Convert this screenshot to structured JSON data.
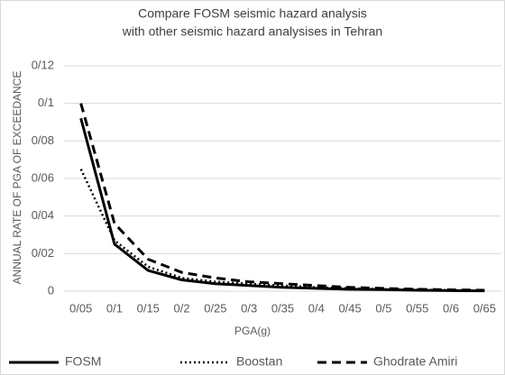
{
  "chart_data": {
    "type": "line",
    "title": [
      "Compare FOSM seismic hazard analysis",
      "with other  seismic hazard analysises  in Tehran"
    ],
    "x_label": "PGA(g)",
    "y_label": "ANNUAL RATE OF PGA OF EXCEEDANCE",
    "categories": [
      "0/05",
      "0/1",
      "0/15",
      "0/2",
      "0/25",
      "0/3",
      "0/35",
      "0/4",
      "0/45",
      "0/5",
      "0/55",
      "0/6",
      "0/65"
    ],
    "series": [
      {
        "name": "FOSM",
        "color": "#000000",
        "line_style": "solid",
        "values": [
          0.092,
          0.025,
          0.011,
          0.006,
          0.004,
          0.003,
          0.002,
          0.0015,
          0.001,
          0.0008,
          0.0005,
          0.0003,
          0.0002
        ]
      },
      {
        "name": "Boostan",
        "color": "#000000",
        "line_style": "dotted",
        "values": [
          0.065,
          0.027,
          0.013,
          0.007,
          0.005,
          0.004,
          0.003,
          0.002,
          0.0015,
          0.001,
          0.0008,
          0.0005,
          0.0003
        ]
      },
      {
        "name": "Ghodrate Amiri",
        "color": "#000000",
        "line_style": "dashed",
        "values": [
          0.1,
          0.036,
          0.017,
          0.01,
          0.007,
          0.005,
          0.004,
          0.003,
          0.002,
          0.0015,
          0.001,
          0.0007,
          0.0005
        ]
      }
    ],
    "ylim": [
      0,
      0.12
    ],
    "yticks": [
      0,
      {
        "value": 0.02,
        "label": "0/02"
      },
      {
        "value": 0.04,
        "label": "0/04"
      },
      {
        "value": 0.06,
        "label": "0/06"
      },
      {
        "value": 0.08,
        "label": "0/08"
      },
      {
        "value": 0.1,
        "label": "0/1"
      },
      {
        "value": 0.12,
        "label": "0/12"
      }
    ],
    "grid": true,
    "legend": "bottom"
  }
}
